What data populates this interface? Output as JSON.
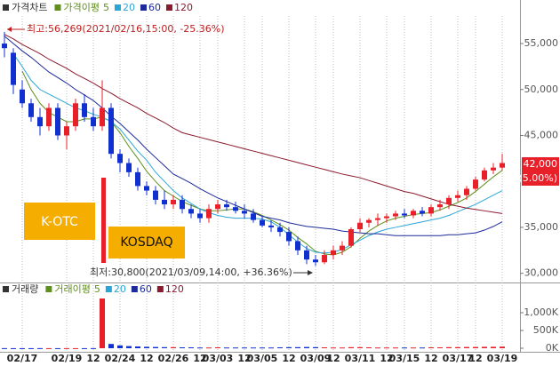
{
  "chart_data": [
    {
      "type": "candlestick",
      "title": "가격차트",
      "ma_label": "가격이평",
      "up_color": "#e8202a",
      "down_color": "#1030d0",
      "ylim": [
        29000,
        58000
      ],
      "yticks": [
        {
          "value": 30000,
          "label": "30,000"
        },
        {
          "value": 35000,
          "label": "35,000"
        },
        {
          "value": 45000,
          "label": "45,000"
        },
        {
          "value": 50000,
          "label": "50,000"
        },
        {
          "value": 55000,
          "label": "55,000"
        }
      ],
      "open": [
        55000,
        54000,
        50000,
        48500,
        47000,
        46000,
        48000,
        45000,
        46000,
        48500,
        47000,
        46000,
        48000,
        43000,
        42000,
        41000,
        39500,
        39000,
        38000,
        37500,
        38000,
        37000,
        36500,
        36000,
        37000,
        37500,
        37200,
        36800,
        36500,
        35800,
        35200,
        35000,
        34500,
        33500,
        32500,
        31500,
        31200,
        32000,
        32500,
        33000,
        34800,
        35500,
        35800,
        36000,
        36200,
        36500,
        36300,
        36800,
        36500,
        37200,
        37500,
        38200,
        38500,
        39200,
        40200,
        41200,
        41500
      ],
      "high": [
        56269,
        54500,
        51000,
        49000,
        48000,
        48500,
        48500,
        46500,
        49000,
        49500,
        48000,
        51000,
        48500,
        43500,
        42500,
        41500,
        40000,
        39500,
        39000,
        38500,
        38500,
        37500,
        37000,
        37500,
        38000,
        38000,
        37800,
        37500,
        37000,
        36200,
        35800,
        35500,
        35000,
        34000,
        33000,
        32000,
        32500,
        33000,
        33500,
        35000,
        36000,
        36000,
        36500,
        36500,
        36800,
        37000,
        37000,
        37200,
        37500,
        38000,
        38500,
        39000,
        39500,
        40500,
        41500,
        42000,
        43000
      ],
      "low": [
        53500,
        49500,
        48000,
        46500,
        45000,
        45500,
        44500,
        43500,
        45500,
        46500,
        45500,
        45500,
        42500,
        41000,
        40500,
        39000,
        38500,
        37500,
        37000,
        37000,
        36500,
        36000,
        35500,
        35500,
        36500,
        36800,
        36500,
        36000,
        35500,
        35000,
        34500,
        34000,
        33000,
        32000,
        31000,
        30800,
        31000,
        31500,
        32000,
        32800,
        34500,
        35000,
        35200,
        35500,
        35800,
        36000,
        36000,
        36200,
        36200,
        36800,
        37000,
        37800,
        38000,
        39000,
        40000,
        40800,
        41200
      ],
      "close": [
        54500,
        50500,
        48500,
        47000,
        46000,
        48000,
        45000,
        46000,
        48500,
        47000,
        46000,
        48000,
        43000,
        42000,
        41000,
        39500,
        39000,
        38000,
        37500,
        38000,
        37000,
        36500,
        36000,
        37000,
        37500,
        37200,
        36800,
        36500,
        35800,
        35200,
        35000,
        34500,
        33500,
        32500,
        31500,
        31200,
        32000,
        32500,
        33000,
        34800,
        35500,
        35800,
        36000,
        36200,
        36500,
        36300,
        36800,
        36500,
        37200,
        37500,
        38200,
        38500,
        39200,
        40200,
        41200,
        41500,
        42000
      ],
      "series": [
        {
          "name": "5",
          "color": "#5f8f1c",
          "values": [
            null,
            null,
            52000,
            50000,
            48500,
            47500,
            47000,
            46500,
            46500,
            46800,
            46800,
            47000,
            46500,
            45300,
            43800,
            42500,
            41100,
            40000,
            39000,
            38400,
            37800,
            37400,
            37000,
            36800,
            36800,
            36900,
            37000,
            37000,
            36700,
            36300,
            35800,
            35300,
            34700,
            33900,
            33200,
            32400,
            32100,
            32000,
            32300,
            32900,
            33800,
            34600,
            35200,
            35700,
            36000,
            36200,
            36400,
            36500,
            36600,
            36900,
            37300,
            37700,
            38200,
            38900,
            39700,
            40500,
            41200
          ]
        },
        {
          "name": "20",
          "color": "#2aa6d6",
          "values": [
            null,
            53900,
            52500,
            51000,
            50000,
            49500,
            49000,
            48500,
            48000,
            47700,
            47300,
            47000,
            46500,
            45700,
            44500,
            43300,
            42300,
            41000,
            40000,
            39000,
            38200,
            37600,
            37000,
            36600,
            36300,
            36100,
            36000,
            36000,
            36000,
            35900,
            35600,
            35000,
            34200,
            33400,
            32700,
            32300,
            32200,
            32300,
            32600,
            33100,
            33600,
            34100,
            34500,
            34800,
            35000,
            35200,
            35400,
            35600,
            35800,
            36000,
            36300,
            36700,
            37100,
            37500,
            38000,
            38500,
            39000
          ]
        },
        {
          "name": "60",
          "color": "#1c2a9a",
          "values": [
            55800,
            55000,
            54200,
            53500,
            52700,
            51900,
            51300,
            50700,
            50000,
            49400,
            48800,
            48000,
            47100,
            46300,
            45400,
            44500,
            43500,
            42600,
            41700,
            40800,
            40300,
            39800,
            39200,
            38700,
            38200,
            37800,
            37400,
            37000,
            36600,
            36200,
            36000,
            35800,
            35500,
            35300,
            35100,
            35000,
            34900,
            34800,
            34600,
            34500,
            34400,
            34300,
            34300,
            34200,
            34100,
            34100,
            34100,
            34100,
            34100,
            34100,
            34200,
            34200,
            34300,
            34400,
            34700,
            35100,
            35600
          ]
        },
        {
          "name": "120",
          "color": "#8b1a2e",
          "values": [
            56000,
            55500,
            54900,
            54400,
            53900,
            53300,
            52800,
            52300,
            51700,
            51200,
            50700,
            50100,
            49600,
            49000,
            48500,
            48000,
            47400,
            46900,
            46400,
            45800,
            45300,
            45050,
            44800,
            44550,
            44300,
            44050,
            43800,
            43550,
            43300,
            43050,
            42800,
            42550,
            42300,
            42050,
            41800,
            41550,
            41300,
            41050,
            40800,
            40600,
            40400,
            40100,
            39800,
            39500,
            39200,
            38900,
            38700,
            38400,
            38100,
            37800,
            37500,
            37300,
            37100,
            36950,
            36800,
            36650,
            36500
          ]
        }
      ],
      "high_label": "최고:56,269(2021/02/16,15:00, -25.36%)",
      "low_label": "최저:30,800(2021/03/09,14:00, +36.36%)",
      "market_labels": [
        "K-OTC",
        "KOSDAQ"
      ],
      "last_price": {
        "value": 42000,
        "label": "42,000"
      },
      "change_label": "(5.00%)"
    },
    {
      "type": "bar",
      "title": "거래량",
      "ma_label": "거래이평",
      "ma_legend": [
        {
          "name": "5",
          "color": "#5f8f1c"
        },
        {
          "name": "20",
          "color": "#2aa6d6"
        },
        {
          "name": "60",
          "color": "#1c2a9a"
        },
        {
          "name": "120",
          "color": "#8b1a2e"
        }
      ],
      "ylim": [
        0,
        1550
      ],
      "yticks": [
        {
          "value": 0,
          "label": "0K"
        },
        {
          "value": 500,
          "label": "500K"
        },
        {
          "value": 1000,
          "label": "1,000K"
        }
      ],
      "categories": [
        null,
        null,
        "02/17",
        null,
        null,
        null,
        null,
        "02/19",
        null,
        null,
        "12",
        null,
        null,
        "02/24",
        null,
        null,
        "12",
        null,
        null,
        "02/26",
        null,
        null,
        "12",
        null,
        "03/03",
        null,
        null,
        "12",
        null,
        "03/05",
        null,
        null,
        "12",
        null,
        null,
        "03/09",
        null,
        "12",
        null,
        null,
        "03/11",
        null,
        null,
        "12",
        null,
        "03/15",
        null,
        null,
        "12",
        null,
        null,
        "03/17",
        null,
        "12",
        null,
        null,
        "03/19"
      ],
      "values": [
        3,
        2,
        2,
        2,
        3,
        2,
        2,
        3,
        2,
        2,
        3,
        1400,
        120,
        80,
        60,
        50,
        40,
        35,
        30,
        30,
        25,
        25,
        20,
        20,
        25,
        20,
        20,
        20,
        20,
        20,
        20,
        25,
        30,
        30,
        35,
        30,
        25,
        20,
        20,
        30,
        30,
        25,
        20,
        20,
        20,
        20,
        20,
        20,
        25,
        25,
        30,
        30,
        35,
        35,
        40,
        40,
        45
      ]
    }
  ]
}
